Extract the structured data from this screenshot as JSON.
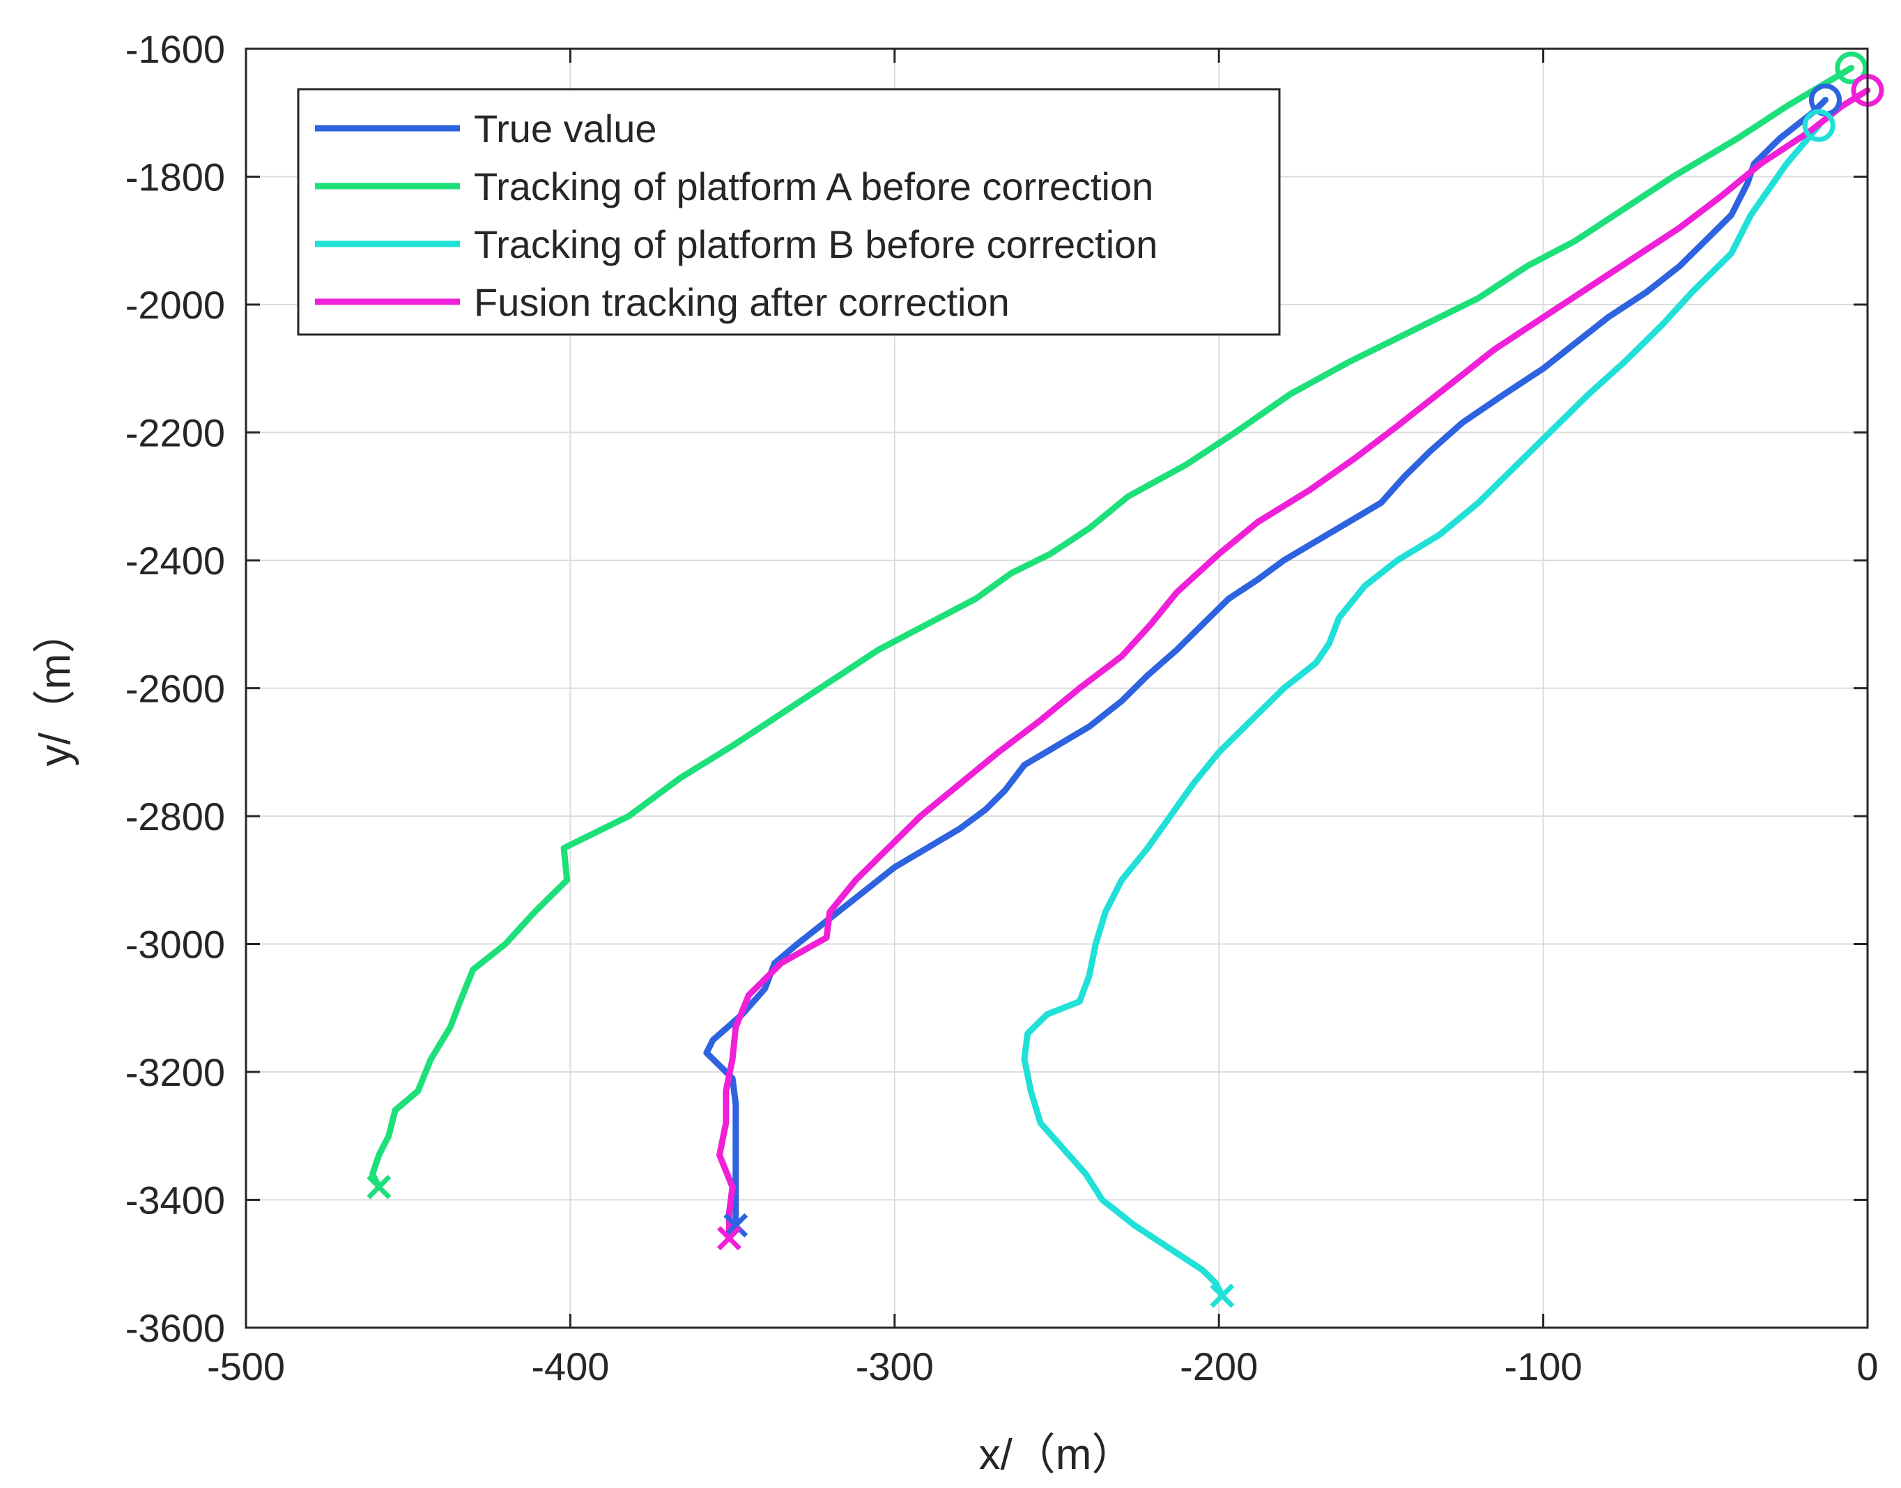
{
  "chart_data": {
    "type": "line",
    "xlabel": "x/（m）",
    "ylabel": "y/（m）",
    "xlim": [
      -500,
      0
    ],
    "ylim": [
      -3600,
      -1600
    ],
    "xticks": [
      -500,
      -400,
      -300,
      -200,
      -100,
      0
    ],
    "yticks": [
      -1600,
      -1800,
      -2000,
      -2200,
      -2400,
      -2600,
      -2800,
      -3000,
      -3200,
      -3400,
      -3600
    ],
    "grid": true,
    "legend_position": "top-left",
    "start_marker": "circle",
    "end_marker": "x",
    "series": [
      {
        "name": "True value",
        "color": "#2e63e0",
        "points": [
          [
            -13,
            -1680
          ],
          [
            -17,
            -1700
          ],
          [
            -27,
            -1740
          ],
          [
            -35,
            -1780
          ],
          [
            -37,
            -1810
          ],
          [
            -42,
            -1860
          ],
          [
            -50,
            -1900
          ],
          [
            -58,
            -1940
          ],
          [
            -68,
            -1980
          ],
          [
            -80,
            -2020
          ],
          [
            -90,
            -2060
          ],
          [
            -100,
            -2100
          ],
          [
            -112,
            -2140
          ],
          [
            -125,
            -2185
          ],
          [
            -135,
            -2230
          ],
          [
            -143,
            -2270
          ],
          [
            -150,
            -2310
          ],
          [
            -160,
            -2340
          ],
          [
            -170,
            -2370
          ],
          [
            -180,
            -2400
          ],
          [
            -188,
            -2430
          ],
          [
            -197,
            -2460
          ],
          [
            -205,
            -2500
          ],
          [
            -213,
            -2540
          ],
          [
            -222,
            -2580
          ],
          [
            -230,
            -2620
          ],
          [
            -240,
            -2660
          ],
          [
            -250,
            -2690
          ],
          [
            -260,
            -2720
          ],
          [
            -266,
            -2760
          ],
          [
            -272,
            -2790
          ],
          [
            -280,
            -2820
          ],
          [
            -290,
            -2850
          ],
          [
            -300,
            -2880
          ],
          [
            -310,
            -2920
          ],
          [
            -320,
            -2960
          ],
          [
            -330,
            -3000
          ],
          [
            -337,
            -3030
          ],
          [
            -340,
            -3070
          ],
          [
            -347,
            -3110
          ],
          [
            -356,
            -3150
          ],
          [
            -358,
            -3170
          ],
          [
            -350,
            -3210
          ],
          [
            -349,
            -3250
          ],
          [
            -349,
            -3300
          ],
          [
            -349,
            -3350
          ],
          [
            -349,
            -3400
          ],
          [
            -349,
            -3440
          ]
        ]
      },
      {
        "name": "Tracking of platform A before correction",
        "color": "#1ee07a",
        "points": [
          [
            -5,
            -1630
          ],
          [
            -15,
            -1660
          ],
          [
            -25,
            -1690
          ],
          [
            -40,
            -1740
          ],
          [
            -60,
            -1800
          ],
          [
            -75,
            -1850
          ],
          [
            -90,
            -1900
          ],
          [
            -105,
            -1940
          ],
          [
            -120,
            -1990
          ],
          [
            -140,
            -2040
          ],
          [
            -160,
            -2090
          ],
          [
            -178,
            -2140
          ],
          [
            -195,
            -2200
          ],
          [
            -210,
            -2250
          ],
          [
            -228,
            -2300
          ],
          [
            -240,
            -2350
          ],
          [
            -252,
            -2390
          ],
          [
            -264,
            -2420
          ],
          [
            -275,
            -2460
          ],
          [
            -290,
            -2500
          ],
          [
            -305,
            -2540
          ],
          [
            -320,
            -2590
          ],
          [
            -335,
            -2640
          ],
          [
            -350,
            -2690
          ],
          [
            -366,
            -2740
          ],
          [
            -382,
            -2800
          ],
          [
            -402,
            -2850
          ],
          [
            -401,
            -2900
          ],
          [
            -411,
            -2950
          ],
          [
            -420,
            -3000
          ],
          [
            -430,
            -3040
          ],
          [
            -434,
            -3090
          ],
          [
            -437,
            -3130
          ],
          [
            -443,
            -3180
          ],
          [
            -447,
            -3230
          ],
          [
            -454,
            -3260
          ],
          [
            -456,
            -3300
          ],
          [
            -459,
            -3330
          ],
          [
            -461,
            -3360
          ],
          [
            -459,
            -3380
          ]
        ]
      },
      {
        "name": "Tracking of platform B before correction",
        "color": "#20e0d8",
        "points": [
          [
            -15,
            -1720
          ],
          [
            -25,
            -1780
          ],
          [
            -36,
            -1860
          ],
          [
            -42,
            -1920
          ],
          [
            -54,
            -1980
          ],
          [
            -63,
            -2030
          ],
          [
            -75,
            -2090
          ],
          [
            -86,
            -2140
          ],
          [
            -98,
            -2200
          ],
          [
            -110,
            -2260
          ],
          [
            -120,
            -2310
          ],
          [
            -132,
            -2360
          ],
          [
            -145,
            -2400
          ],
          [
            -155,
            -2440
          ],
          [
            -163,
            -2490
          ],
          [
            -166,
            -2530
          ],
          [
            -170,
            -2560
          ],
          [
            -180,
            -2600
          ],
          [
            -190,
            -2650
          ],
          [
            -200,
            -2700
          ],
          [
            -208,
            -2750
          ],
          [
            -215,
            -2800
          ],
          [
            -222,
            -2850
          ],
          [
            -230,
            -2900
          ],
          [
            -235,
            -2950
          ],
          [
            -238,
            -3000
          ],
          [
            -240,
            -3050
          ],
          [
            -243,
            -3090
          ],
          [
            -253,
            -3110
          ],
          [
            -259,
            -3140
          ],
          [
            -260,
            -3180
          ],
          [
            -258,
            -3230
          ],
          [
            -255,
            -3280
          ],
          [
            -248,
            -3320
          ],
          [
            -241,
            -3360
          ],
          [
            -236,
            -3400
          ],
          [
            -226,
            -3440
          ],
          [
            -214,
            -3480
          ],
          [
            -205,
            -3510
          ],
          [
            -201,
            -3530
          ],
          [
            -199,
            -3550
          ]
        ]
      },
      {
        "name": "Fusion tracking after correction",
        "color": "#f020d8",
        "points": [
          [
            0,
            -1665
          ],
          [
            -8,
            -1690
          ],
          [
            -18,
            -1730
          ],
          [
            -33,
            -1780
          ],
          [
            -45,
            -1830
          ],
          [
            -58,
            -1880
          ],
          [
            -70,
            -1920
          ],
          [
            -85,
            -1970
          ],
          [
            -100,
            -2020
          ],
          [
            -115,
            -2070
          ],
          [
            -130,
            -2130
          ],
          [
            -145,
            -2190
          ],
          [
            -158,
            -2240
          ],
          [
            -172,
            -2290
          ],
          [
            -188,
            -2340
          ],
          [
            -200,
            -2390
          ],
          [
            -213,
            -2450
          ],
          [
            -221,
            -2500
          ],
          [
            -230,
            -2550
          ],
          [
            -243,
            -2600
          ],
          [
            -255,
            -2650
          ],
          [
            -268,
            -2700
          ],
          [
            -280,
            -2750
          ],
          [
            -292,
            -2800
          ],
          [
            -302,
            -2850
          ],
          [
            -312,
            -2900
          ],
          [
            -320,
            -2950
          ],
          [
            -321,
            -2990
          ],
          [
            -335,
            -3030
          ],
          [
            -345,
            -3080
          ],
          [
            -349,
            -3130
          ],
          [
            -350,
            -3180
          ],
          [
            -352,
            -3230
          ],
          [
            -352,
            -3280
          ],
          [
            -354,
            -3330
          ],
          [
            -350,
            -3380
          ],
          [
            -351,
            -3420
          ],
          [
            -351,
            -3460
          ]
        ]
      }
    ]
  }
}
